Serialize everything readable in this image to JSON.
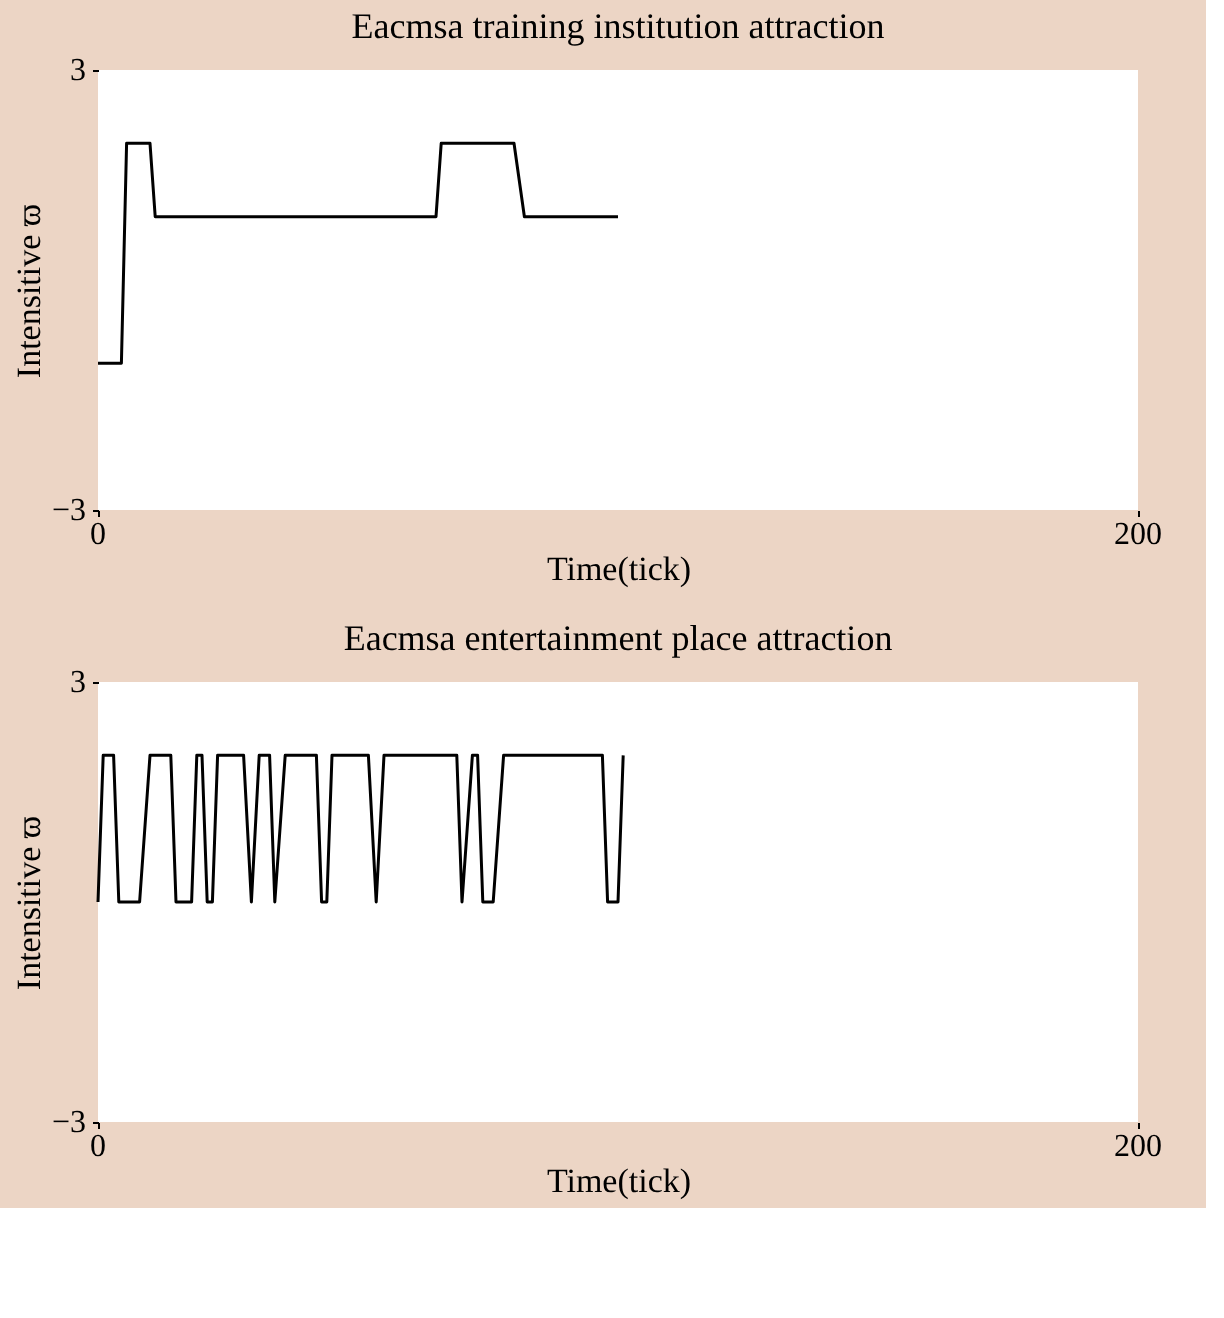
{
  "chart_data": [
    {
      "type": "line",
      "title": "Eacmsa training institution attraction",
      "xlabel": "Time(tick)",
      "ylabel": "Intensitive ϖ",
      "xlim": [
        0,
        200
      ],
      "ylim": [
        -3,
        3
      ],
      "xticks": [
        0,
        200
      ],
      "yticks": [
        -3,
        3
      ],
      "grid": false,
      "series": [
        {
          "color": "#000000",
          "x": [
            0,
            4.5,
            5.5,
            10,
            11,
            65,
            66,
            80,
            82,
            100
          ],
          "values": [
            -1,
            -1,
            2,
            2,
            1,
            1,
            2,
            2,
            1,
            1
          ]
        }
      ]
    },
    {
      "type": "line",
      "title": "Eacmsa entertainment place attraction",
      "xlabel": "Time(tick)",
      "ylabel": "Intensitive ϖ",
      "xlim": [
        0,
        200
      ],
      "ylim": [
        -3,
        3
      ],
      "xticks": [
        0,
        200
      ],
      "yticks": [
        -3,
        3
      ],
      "grid": false,
      "series": [
        {
          "color": "#000000",
          "x": [
            0,
            1,
            3,
            4,
            8,
            10,
            14,
            15,
            18,
            19,
            20,
            21,
            22,
            23,
            28,
            29.5,
            31,
            33,
            34,
            36,
            42,
            43,
            44,
            45,
            52,
            53.5,
            55,
            69,
            70,
            72,
            73,
            74,
            76,
            78,
            97,
            98,
            100,
            101
          ],
          "values": [
            0,
            2,
            2,
            0,
            0,
            2,
            2,
            0,
            0,
            2,
            2,
            0,
            0,
            2,
            2,
            0,
            2,
            2,
            0,
            2,
            2,
            0,
            0,
            2,
            2,
            0,
            2,
            2,
            0,
            2,
            2,
            0,
            0,
            2,
            2,
            0,
            0,
            2
          ]
        }
      ]
    }
  ]
}
